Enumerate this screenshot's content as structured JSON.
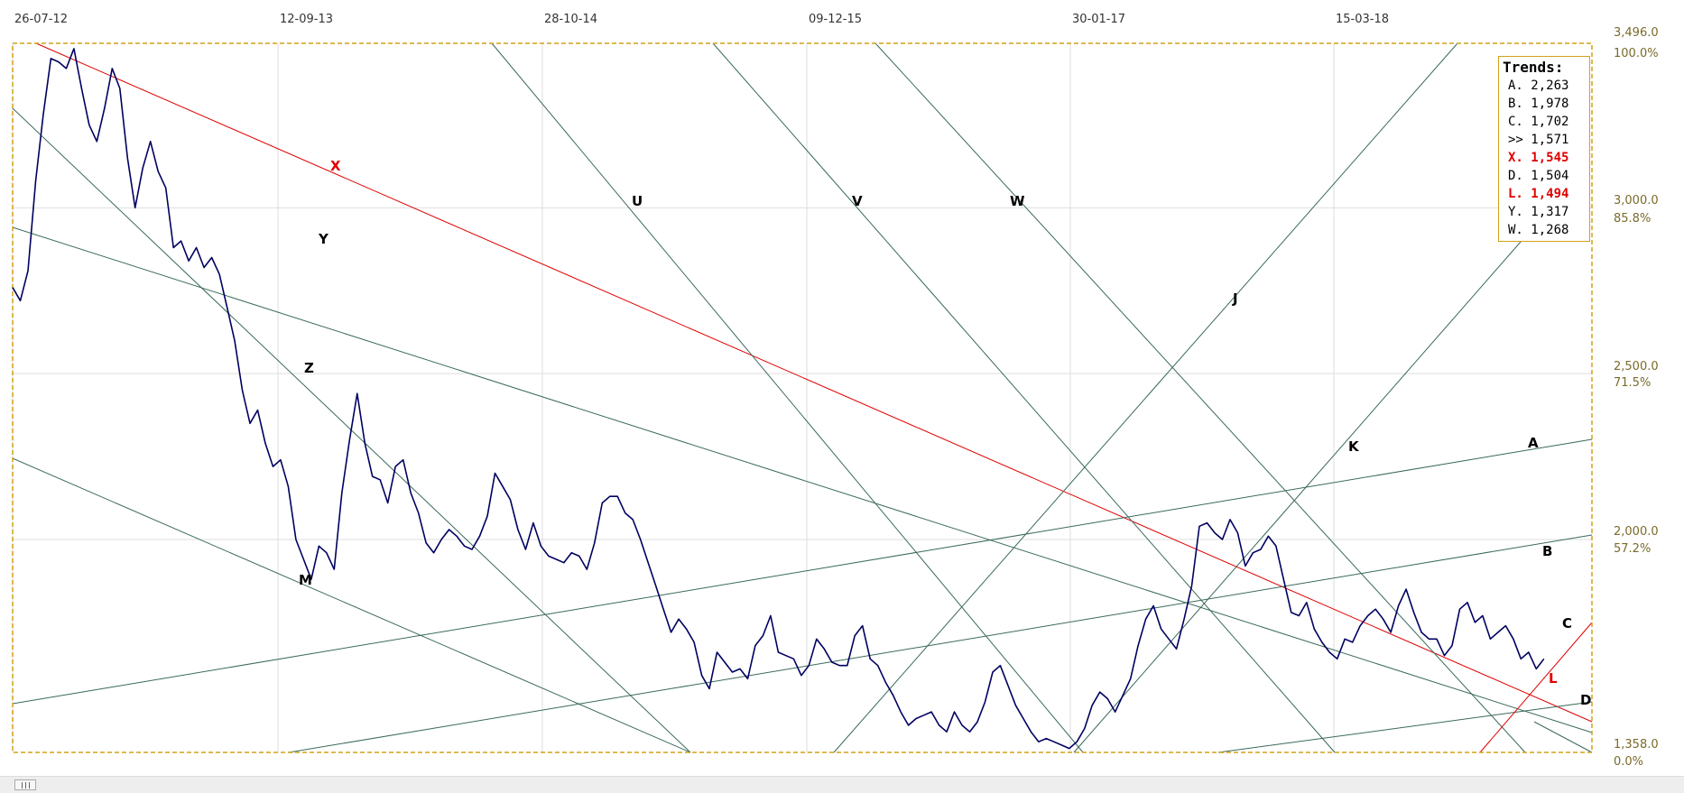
{
  "chart_data": {
    "type": "line",
    "title": "",
    "x_labels": [
      "26-07-12",
      "12-09-13",
      "28-10-14",
      "09-12-15",
      "30-01-17",
      "15-03-18"
    ],
    "price_ticks": [
      {
        "price": 3496.0,
        "label": "3,496.0",
        "pct": "100.0%"
      },
      {
        "price": 3000.0,
        "label": "3,000.0",
        "pct": "85.8%"
      },
      {
        "price": 2500.0,
        "label": "2,500.0",
        "pct": "71.5%"
      },
      {
        "price": 2000.0,
        "label": "2,000.0",
        "pct": "57.2%"
      },
      {
        "price": 1358.0,
        "label": "1,358.0",
        "pct": "0.0%"
      }
    ],
    "ylim": [
      1358,
      3496
    ],
    "series": [
      {
        "color": "#000060",
        "points": [
          [
            0.0,
            2760
          ],
          [
            0.005,
            2720
          ],
          [
            0.01,
            2810
          ],
          [
            0.015,
            3080
          ],
          [
            0.02,
            3280
          ],
          [
            0.025,
            3450
          ],
          [
            0.03,
            3440
          ],
          [
            0.035,
            3420
          ],
          [
            0.04,
            3480
          ],
          [
            0.045,
            3360
          ],
          [
            0.05,
            3250
          ],
          [
            0.055,
            3200
          ],
          [
            0.06,
            3300
          ],
          [
            0.065,
            3420
          ],
          [
            0.07,
            3360
          ],
          [
            0.075,
            3150
          ],
          [
            0.08,
            3000
          ],
          [
            0.085,
            3120
          ],
          [
            0.09,
            3200
          ],
          [
            0.095,
            3110
          ],
          [
            0.1,
            3060
          ],
          [
            0.105,
            2880
          ],
          [
            0.11,
            2900
          ],
          [
            0.115,
            2840
          ],
          [
            0.12,
            2880
          ],
          [
            0.125,
            2820
          ],
          [
            0.13,
            2850
          ],
          [
            0.135,
            2800
          ],
          [
            0.14,
            2700
          ],
          [
            0.145,
            2600
          ],
          [
            0.15,
            2450
          ],
          [
            0.155,
            2350
          ],
          [
            0.16,
            2390
          ],
          [
            0.165,
            2290
          ],
          [
            0.17,
            2220
          ],
          [
            0.175,
            2240
          ],
          [
            0.18,
            2160
          ],
          [
            0.185,
            2000
          ],
          [
            0.19,
            1940
          ],
          [
            0.195,
            1880
          ],
          [
            0.2,
            1980
          ],
          [
            0.205,
            1960
          ],
          [
            0.21,
            1910
          ],
          [
            0.215,
            2140
          ],
          [
            0.22,
            2300
          ],
          [
            0.225,
            2440
          ],
          [
            0.23,
            2290
          ],
          [
            0.235,
            2190
          ],
          [
            0.24,
            2180
          ],
          [
            0.245,
            2110
          ],
          [
            0.25,
            2220
          ],
          [
            0.255,
            2240
          ],
          [
            0.26,
            2140
          ],
          [
            0.265,
            2080
          ],
          [
            0.27,
            1990
          ],
          [
            0.275,
            1960
          ],
          [
            0.28,
            2000
          ],
          [
            0.285,
            2030
          ],
          [
            0.29,
            2010
          ],
          [
            0.295,
            1980
          ],
          [
            0.3,
            1970
          ],
          [
            0.305,
            2010
          ],
          [
            0.31,
            2070
          ],
          [
            0.315,
            2200
          ],
          [
            0.32,
            2160
          ],
          [
            0.325,
            2120
          ],
          [
            0.33,
            2030
          ],
          [
            0.335,
            1970
          ],
          [
            0.34,
            2050
          ],
          [
            0.345,
            1980
          ],
          [
            0.35,
            1950
          ],
          [
            0.355,
            1940
          ],
          [
            0.36,
            1930
          ],
          [
            0.365,
            1960
          ],
          [
            0.37,
            1950
          ],
          [
            0.375,
            1910
          ],
          [
            0.38,
            1990
          ],
          [
            0.385,
            2110
          ],
          [
            0.39,
            2130
          ],
          [
            0.395,
            2130
          ],
          [
            0.4,
            2080
          ],
          [
            0.405,
            2060
          ],
          [
            0.41,
            2000
          ],
          [
            0.415,
            1930
          ],
          [
            0.42,
            1860
          ],
          [
            0.425,
            1790
          ],
          [
            0.43,
            1720
          ],
          [
            0.435,
            1760
          ],
          [
            0.44,
            1730
          ],
          [
            0.445,
            1690
          ],
          [
            0.45,
            1590
          ],
          [
            0.455,
            1550
          ],
          [
            0.46,
            1660
          ],
          [
            0.465,
            1630
          ],
          [
            0.47,
            1600
          ],
          [
            0.475,
            1610
          ],
          [
            0.48,
            1580
          ],
          [
            0.485,
            1680
          ],
          [
            0.49,
            1710
          ],
          [
            0.495,
            1770
          ],
          [
            0.5,
            1660
          ],
          [
            0.505,
            1650
          ],
          [
            0.51,
            1640
          ],
          [
            0.515,
            1590
          ],
          [
            0.52,
            1620
          ],
          [
            0.525,
            1700
          ],
          [
            0.53,
            1670
          ],
          [
            0.535,
            1630
          ],
          [
            0.54,
            1620
          ],
          [
            0.545,
            1620
          ],
          [
            0.55,
            1710
          ],
          [
            0.555,
            1740
          ],
          [
            0.56,
            1640
          ],
          [
            0.565,
            1620
          ],
          [
            0.57,
            1570
          ],
          [
            0.575,
            1530
          ],
          [
            0.58,
            1480
          ],
          [
            0.585,
            1440
          ],
          [
            0.59,
            1460
          ],
          [
            0.595,
            1470
          ],
          [
            0.6,
            1480
          ],
          [
            0.605,
            1440
          ],
          [
            0.61,
            1420
          ],
          [
            0.615,
            1480
          ],
          [
            0.62,
            1440
          ],
          [
            0.625,
            1420
          ],
          [
            0.63,
            1450
          ],
          [
            0.635,
            1510
          ],
          [
            0.64,
            1600
          ],
          [
            0.645,
            1620
          ],
          [
            0.65,
            1560
          ],
          [
            0.655,
            1500
          ],
          [
            0.66,
            1460
          ],
          [
            0.665,
            1420
          ],
          [
            0.67,
            1390
          ],
          [
            0.675,
            1400
          ],
          [
            0.68,
            1390
          ],
          [
            0.685,
            1380
          ],
          [
            0.69,
            1370
          ],
          [
            0.695,
            1390
          ],
          [
            0.7,
            1430
          ],
          [
            0.705,
            1500
          ],
          [
            0.71,
            1540
          ],
          [
            0.715,
            1520
          ],
          [
            0.72,
            1480
          ],
          [
            0.725,
            1530
          ],
          [
            0.73,
            1580
          ],
          [
            0.735,
            1680
          ],
          [
            0.74,
            1760
          ],
          [
            0.745,
            1800
          ],
          [
            0.75,
            1730
          ],
          [
            0.755,
            1700
          ],
          [
            0.76,
            1670
          ],
          [
            0.765,
            1760
          ],
          [
            0.77,
            1860
          ],
          [
            0.775,
            2040
          ],
          [
            0.78,
            2050
          ],
          [
            0.785,
            2020
          ],
          [
            0.79,
            2000
          ],
          [
            0.795,
            2060
          ],
          [
            0.8,
            2020
          ],
          [
            0.805,
            1920
          ],
          [
            0.81,
            1960
          ],
          [
            0.815,
            1970
          ],
          [
            0.82,
            2010
          ],
          [
            0.825,
            1980
          ],
          [
            0.83,
            1880
          ],
          [
            0.835,
            1780
          ],
          [
            0.84,
            1770
          ],
          [
            0.845,
            1810
          ],
          [
            0.85,
            1730
          ],
          [
            0.855,
            1690
          ],
          [
            0.86,
            1660
          ],
          [
            0.865,
            1640
          ],
          [
            0.87,
            1700
          ],
          [
            0.875,
            1690
          ],
          [
            0.88,
            1740
          ],
          [
            0.885,
            1770
          ],
          [
            0.89,
            1790
          ],
          [
            0.895,
            1760
          ],
          [
            0.9,
            1720
          ],
          [
            0.905,
            1800
          ],
          [
            0.91,
            1850
          ],
          [
            0.915,
            1780
          ],
          [
            0.92,
            1720
          ],
          [
            0.925,
            1700
          ],
          [
            0.93,
            1700
          ],
          [
            0.935,
            1650
          ],
          [
            0.94,
            1680
          ],
          [
            0.945,
            1790
          ],
          [
            0.95,
            1810
          ],
          [
            0.955,
            1750
          ],
          [
            0.96,
            1770
          ],
          [
            0.965,
            1700
          ],
          [
            0.97,
            1720
          ],
          [
            0.975,
            1740
          ],
          [
            0.98,
            1700
          ],
          [
            0.985,
            1640
          ],
          [
            0.99,
            1660
          ],
          [
            0.995,
            1610
          ],
          [
            1.0,
            1640
          ]
        ]
      }
    ],
    "trend_labels": [
      "X",
      "Y",
      "Z",
      "M",
      "U",
      "V",
      "W",
      "J",
      "K",
      "A",
      "B",
      "C",
      "D",
      "L"
    ],
    "legend": {
      "title": "Trends:",
      "items": [
        {
          "text": "A. 2,263",
          "color": "#000000"
        },
        {
          "text": "B. 1,978",
          "color": "#000000"
        },
        {
          "text": "C. 1,702",
          "color": "#000000"
        },
        {
          "text": ">> 1,571",
          "color": "#000000"
        },
        {
          "text": "X. 1,545",
          "color": "#e00000"
        },
        {
          "text": "D. 1,504",
          "color": "#000000"
        },
        {
          "text": "L. 1,494",
          "color": "#e00000"
        },
        {
          "text": "Y. 1,317",
          "color": "#000000"
        },
        {
          "text": "W. 1,268",
          "color": "#000000"
        }
      ]
    },
    "colors": {
      "price_line": "#000060",
      "trend_line": "#3a6a5a",
      "red_trend": "#e00000",
      "frame": "#d4a017",
      "grid": "#dddddd"
    }
  }
}
